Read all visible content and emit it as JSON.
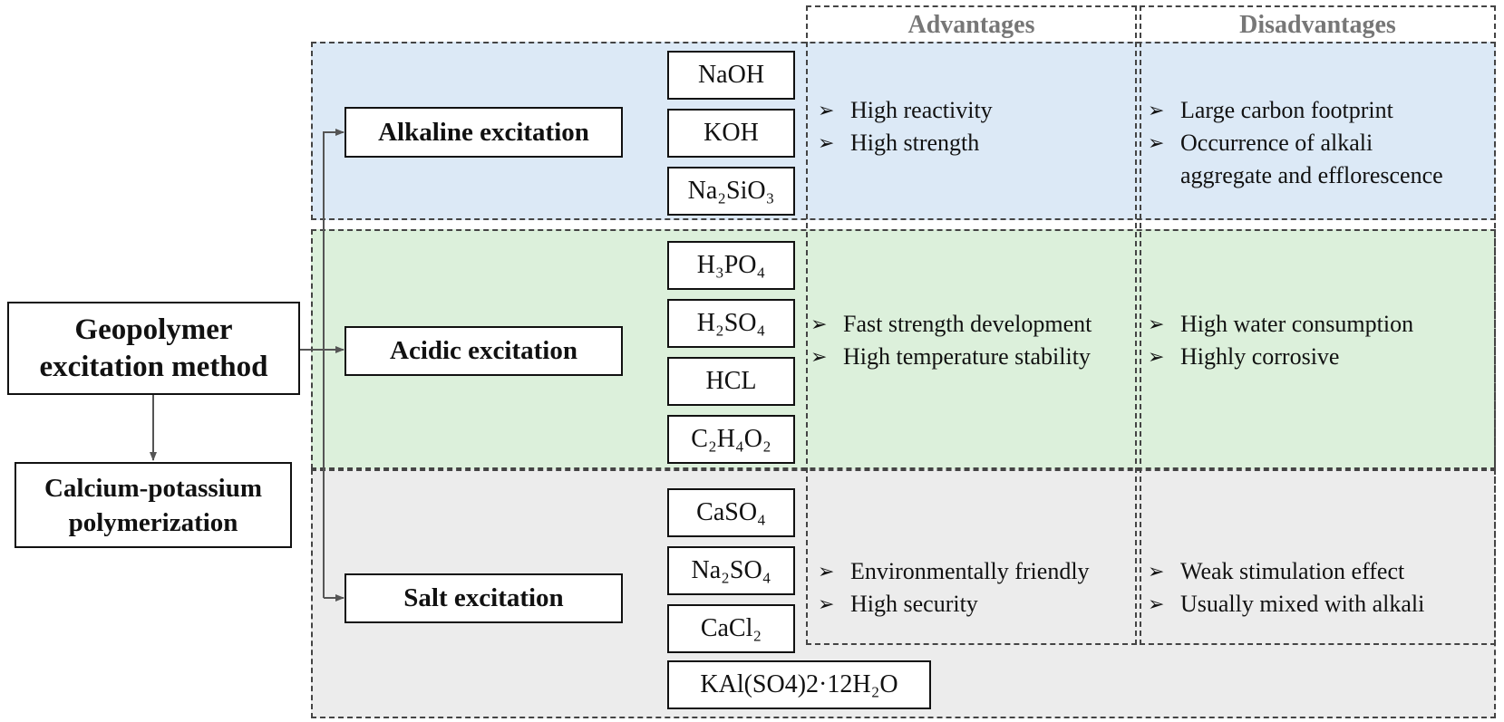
{
  "headers": {
    "advantages": "Advantages",
    "disadvantages": "Disadvantages"
  },
  "main_method": {
    "line1": "Geopolymer",
    "line2": "excitation method"
  },
  "calcium": {
    "line1": "Calcium-potassium",
    "line2": "polymerization"
  },
  "rows": [
    {
      "id": "alkaline",
      "label": "Alkaline excitation",
      "reagents": [
        "NaOH",
        "KOH",
        "Na₂SiO₃"
      ],
      "advantages": [
        "High reactivity",
        "High strength"
      ],
      "disadvantages": [
        "Large carbon footprint",
        "Occurrence of alkali",
        "aggregate and efflorescence"
      ]
    },
    {
      "id": "acidic",
      "label": "Acidic excitation",
      "reagents": [
        "H₃PO₄",
        "H₂SO₄",
        "HCL",
        "C₂H₄O₂"
      ],
      "advantages": [
        "Fast strength development",
        "High temperature stability"
      ],
      "disadvantages": [
        "High water consumption",
        "Highly corrosive"
      ]
    },
    {
      "id": "salt",
      "label": "Salt excitation",
      "reagents": [
        "CaSO₄",
        "Na₂SO₄",
        "CaCl₂",
        "KAl(SO4)2·12H₂O"
      ],
      "advantages": [
        "Environmentally friendly",
        "High security"
      ],
      "disadvantages": [
        "Weak stimulation effect",
        "Usually mixed with alkali"
      ]
    }
  ],
  "bullet_icon": "arrowhead-bullet-icon"
}
